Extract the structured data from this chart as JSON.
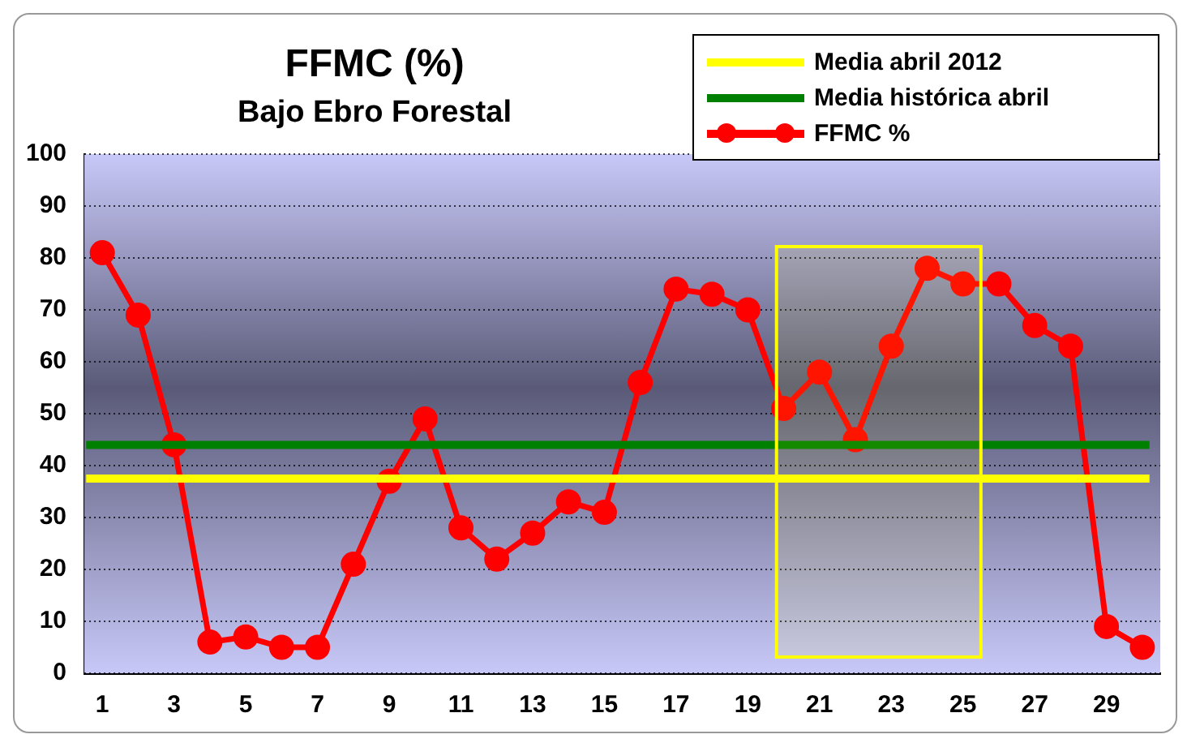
{
  "chart_data": {
    "type": "line",
    "title": "FFMC (%)",
    "subtitle": "Bajo Ebro Forestal",
    "x": [
      1,
      2,
      3,
      4,
      5,
      6,
      7,
      8,
      9,
      10,
      11,
      12,
      13,
      14,
      15,
      16,
      17,
      18,
      19,
      20,
      21,
      22,
      23,
      24,
      25,
      26,
      27,
      28,
      29,
      30
    ],
    "series": [
      {
        "name": "FFMC %",
        "color": "#ff0000",
        "values": [
          81,
          69,
          44,
          6,
          7,
          5,
          5,
          21,
          37,
          49,
          28,
          22,
          27,
          33,
          31,
          56,
          74,
          73,
          70,
          51,
          58,
          45,
          63,
          78,
          75,
          75,
          67,
          63,
          9,
          5
        ]
      }
    ],
    "ref_lines": [
      {
        "axis": "y",
        "value": 37.5,
        "label": "Media abril 2012",
        "color": "#ffff00"
      },
      {
        "axis": "y",
        "value": 44,
        "label": "Media histórica abril",
        "color": "#008000"
      }
    ],
    "bands": [
      {
        "axis": "x",
        "from": 19.8,
        "to": 25.5,
        "color": "#ffff00"
      }
    ],
    "xlim": [
      0.5,
      30.5
    ],
    "xticks": [
      1,
      3,
      5,
      7,
      9,
      11,
      13,
      15,
      17,
      19,
      21,
      23,
      25,
      27,
      29
    ],
    "ylim": [
      0,
      100
    ],
    "yticks": [
      0,
      10,
      20,
      30,
      40,
      50,
      60,
      70,
      80,
      90,
      100
    ],
    "grid": "y",
    "legend": "top right",
    "marker": "circle",
    "line_style": "solid"
  }
}
